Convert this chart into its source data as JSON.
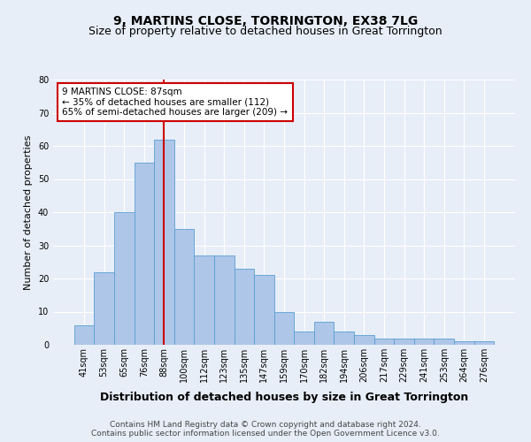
{
  "title1": "9, MARTINS CLOSE, TORRINGTON, EX38 7LG",
  "title2": "Size of property relative to detached houses in Great Torrington",
  "xlabel": "Distribution of detached houses by size in Great Torrington",
  "ylabel": "Number of detached properties",
  "footnote1": "Contains HM Land Registry data © Crown copyright and database right 2024.",
  "footnote2": "Contains public sector information licensed under the Open Government Licence v3.0.",
  "annotation_line1": "9 MARTINS CLOSE: 87sqm",
  "annotation_line2": "← 35% of detached houses are smaller (112)",
  "annotation_line3": "65% of semi-detached houses are larger (209) →",
  "bar_labels": [
    "41sqm",
    "53sqm",
    "65sqm",
    "76sqm",
    "88sqm",
    "100sqm",
    "112sqm",
    "123sqm",
    "135sqm",
    "147sqm",
    "159sqm",
    "170sqm",
    "182sqm",
    "194sqm",
    "206sqm",
    "217sqm",
    "229sqm",
    "241sqm",
    "253sqm",
    "264sqm",
    "276sqm"
  ],
  "bar_values": [
    6,
    22,
    40,
    55,
    62,
    35,
    27,
    27,
    23,
    21,
    10,
    4,
    7,
    4,
    3,
    2,
    2,
    2,
    2,
    1,
    1
  ],
  "bar_color": "#aec6e8",
  "bar_edge_color": "#5a9fd4",
  "vline_x_index": 4,
  "vline_color": "#cc0000",
  "ylim": [
    0,
    80
  ],
  "yticks": [
    0,
    10,
    20,
    30,
    40,
    50,
    60,
    70,
    80
  ],
  "background_color": "#e8eef8",
  "annotation_box_color": "#ffffff",
  "annotation_box_edge": "#cc0000",
  "grid_color": "#ffffff",
  "title1_fontsize": 10,
  "title2_fontsize": 9,
  "xlabel_fontsize": 9,
  "ylabel_fontsize": 8,
  "tick_fontsize": 7,
  "footnote_fontsize": 6.5
}
